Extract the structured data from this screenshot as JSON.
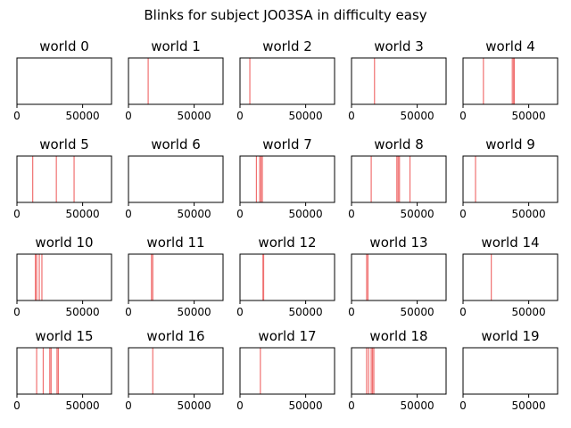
{
  "suptitle": "Blinks for subject JO03SA in difficulty easy",
  "chart_data": {
    "type": "event_raster",
    "title": "Blinks for subject JO03SA in difficulty easy",
    "xlim": [
      0,
      72000
    ],
    "xticks": [
      0,
      50000
    ],
    "xtick_labels": [
      "0",
      "50000"
    ],
    "line_color": "#f07070",
    "panels": [
      {
        "title": "world 0",
        "events": []
      },
      {
        "title": "world 1",
        "events": [
          15000
        ]
      },
      {
        "title": "world 2",
        "events": [
          7500
        ]
      },
      {
        "title": "world 3",
        "events": [
          17500
        ]
      },
      {
        "title": "world 4",
        "events": [
          15500,
          37500,
          38500,
          39000
        ]
      },
      {
        "title": "world 5",
        "events": [
          12000,
          30000,
          43500
        ]
      },
      {
        "title": "world 6",
        "events": []
      },
      {
        "title": "world 7",
        "events": [
          12500,
          15000,
          16000,
          17000
        ]
      },
      {
        "title": "world 8",
        "events": [
          15000,
          34500,
          35500,
          36500,
          44500
        ]
      },
      {
        "title": "world 9",
        "events": [
          9500
        ]
      },
      {
        "title": "world 10",
        "events": [
          14000,
          15000,
          17000,
          19000
        ]
      },
      {
        "title": "world 11",
        "events": [
          17500,
          18500
        ]
      },
      {
        "title": "world 12",
        "events": [
          17500,
          18000
        ]
      },
      {
        "title": "world 13",
        "events": [
          11500,
          12500
        ]
      },
      {
        "title": "world 14",
        "events": [
          21500
        ]
      },
      {
        "title": "world 15",
        "events": [
          15000,
          20000,
          25000,
          26000,
          30500,
          31500
        ]
      },
      {
        "title": "world 16",
        "events": [
          18500
        ]
      },
      {
        "title": "world 17",
        "events": [
          15500
        ]
      },
      {
        "title": "world 18",
        "events": [
          11500,
          13000,
          15000,
          16000,
          17000
        ]
      },
      {
        "title": "world 19",
        "events": []
      }
    ]
  }
}
